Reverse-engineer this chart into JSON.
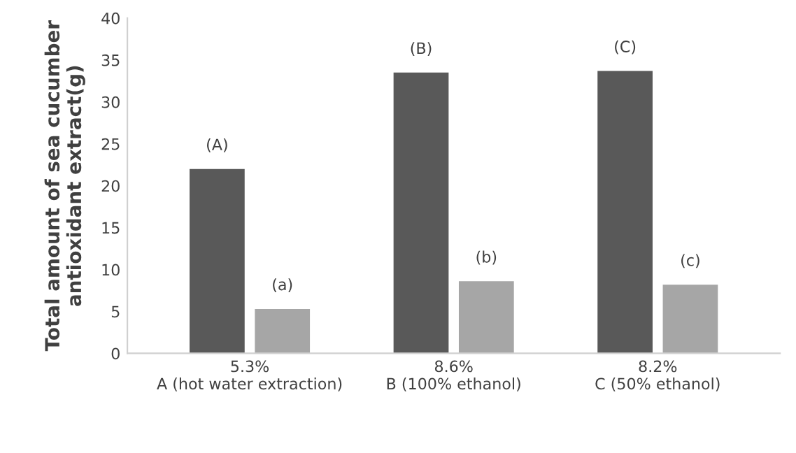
{
  "chart_data": {
    "type": "bar",
    "categories": [
      "5.3%\nA (hot water extraction)",
      "8.6%\nB (100% ethanol)",
      "8.2%\nC (50% ethanol)"
    ],
    "series": [
      {
        "color": "#595959",
        "values": [
          22,
          33.5,
          33.7
        ],
        "value_labels": [
          "(A)",
          "(B)",
          "(C)"
        ]
      },
      {
        "color": "#a6a6a6",
        "values": [
          5.3,
          8.6,
          8.2
        ],
        "value_labels": [
          "(a)",
          "(b)",
          "(c)"
        ]
      }
    ],
    "ylabel": "Total amount of sea cucumber\nantioxidant extract(g)",
    "ylim": [
      0,
      40
    ],
    "yticks": [
      0,
      5,
      10,
      15,
      20,
      25,
      30,
      35,
      40
    ],
    "grid": false,
    "legend": false
  }
}
